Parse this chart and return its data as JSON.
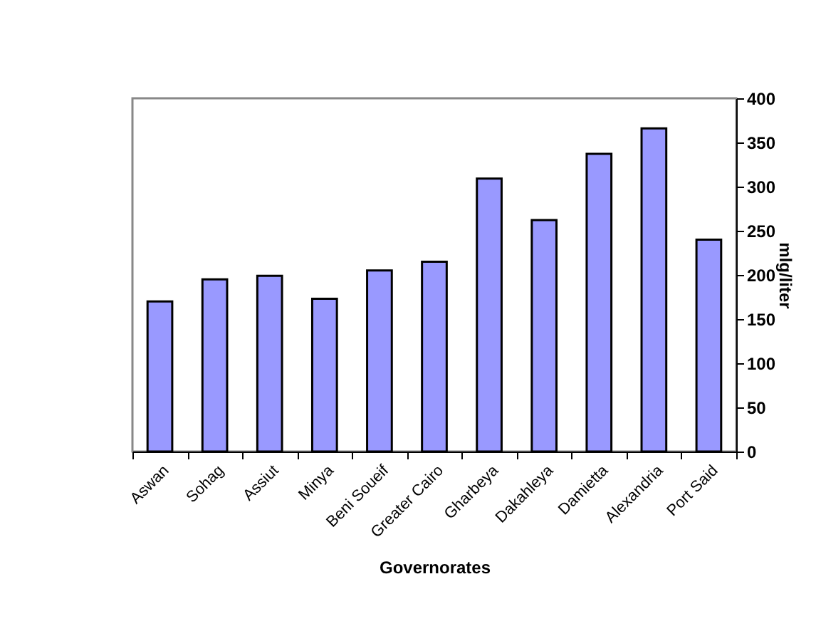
{
  "chart_data": {
    "type": "bar",
    "xlabel": "Governorates",
    "ylabel": "mlg/liter",
    "categories": [
      "Aswan",
      "Sohag",
      "Assiut",
      "Minya",
      "Beni Soueif",
      "Greater Cairo",
      "Gharbeya",
      "Dakahleya",
      "Damietta",
      "Alexandria",
      "Port Said"
    ],
    "values": [
      170,
      195,
      199,
      173,
      205,
      215,
      309,
      262,
      337,
      366,
      240
    ],
    "color": "#9999ff",
    "ylim": [
      0,
      400
    ],
    "yticks": [
      0,
      50,
      100,
      150,
      200,
      250,
      300,
      350,
      400
    ],
    "grid": false
  }
}
